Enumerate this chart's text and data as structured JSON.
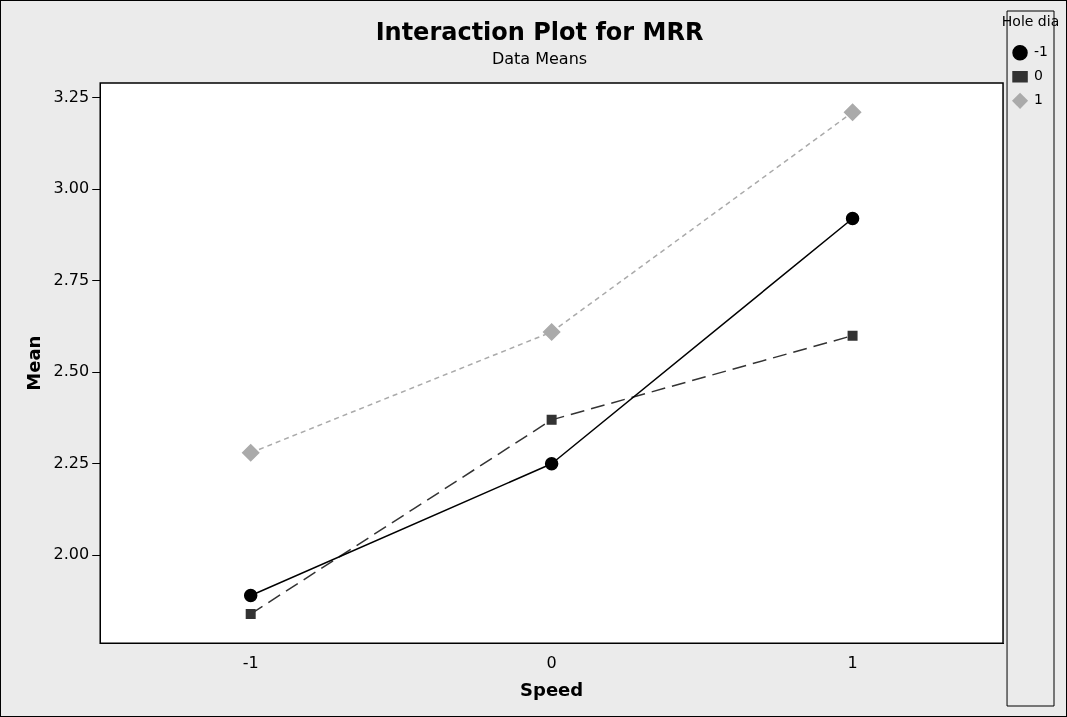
{
  "chart_data": {
    "type": "line",
    "title": "Interaction Plot for MRR",
    "subtitle": "Data Means",
    "xlabel": "Speed",
    "ylabel": "Mean",
    "legend_title": "Hole dia",
    "legend": "top right",
    "grid": false,
    "x": [
      -1,
      0,
      1
    ],
    "xlim": [
      -1.5,
      1.5
    ],
    "xticks": [
      -1,
      0,
      1
    ],
    "ylim": [
      1.76,
      3.29
    ],
    "yticks": [
      {
        "value": 2,
        "label": "2.00"
      },
      {
        "value": 2.25,
        "label": "2.25"
      },
      {
        "value": 2.5,
        "label": "2.50"
      },
      {
        "value": 2.75,
        "label": "2.75"
      },
      {
        "value": 3,
        "label": "3.00"
      },
      {
        "value": 3.25,
        "label": "3.25"
      }
    ],
    "series": [
      {
        "name": "-1",
        "color": "#000000",
        "marker": "circle",
        "line_style": "solid",
        "values": [
          1.89,
          2.25,
          2.92
        ]
      },
      {
        "name": "0",
        "color": "#333333",
        "marker": "square",
        "line_style": "dashed",
        "values": [
          1.84,
          2.37,
          2.6
        ]
      },
      {
        "name": "1",
        "color": "#aaaaaa",
        "marker": "diamond",
        "line_style": "dotted",
        "values": [
          2.28,
          2.61,
          3.21
        ]
      }
    ]
  }
}
